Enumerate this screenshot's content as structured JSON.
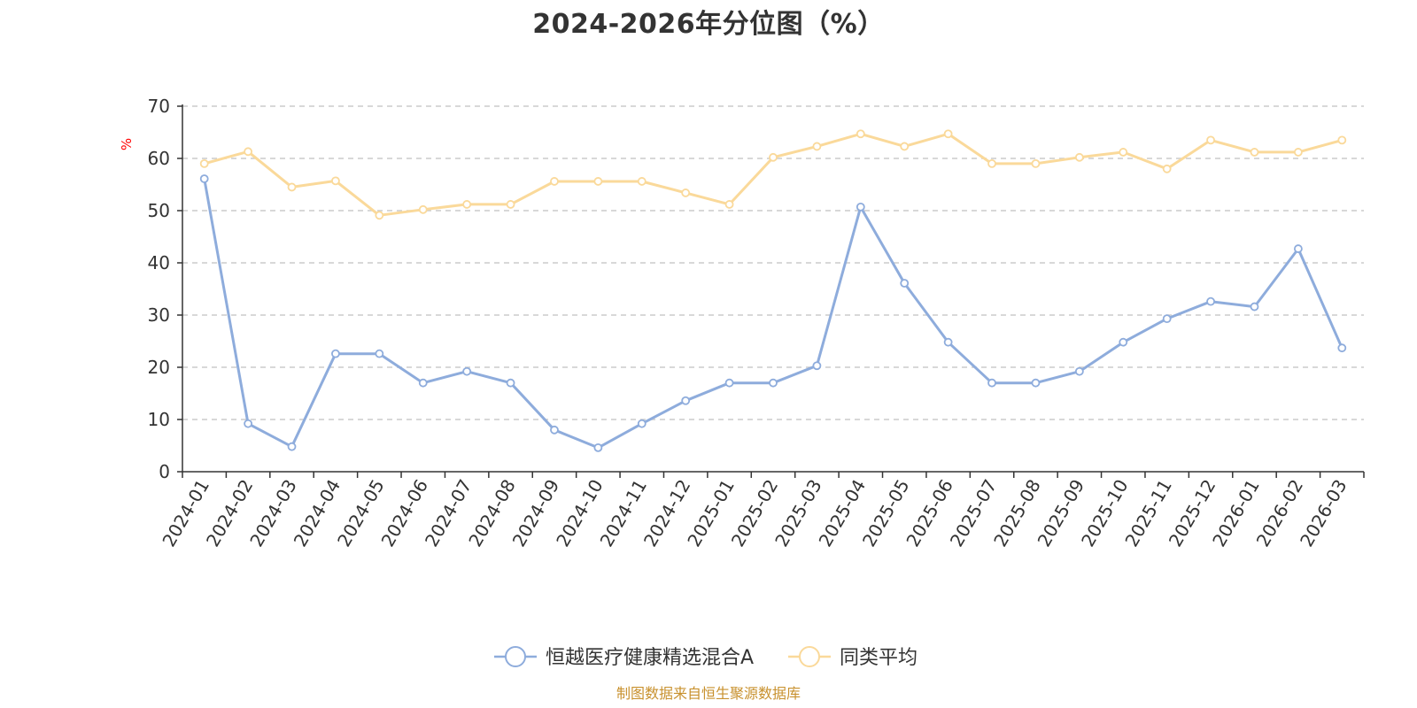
{
  "source_note": "制图数据来自恒生聚源数据库",
  "colors": {
    "series_fund": "#8eacdc",
    "series_avg": "#fad99a",
    "source_note": "#c8912e",
    "unit_label": "#ff0000",
    "grid": "#cccccc",
    "axis": "#333333"
  },
  "chart_data": {
    "type": "line",
    "title": "2024-2026年分位图（%）",
    "ylabel": "%",
    "xlabel": "",
    "ylim": [
      0,
      70
    ],
    "y_ticks": [
      0,
      10,
      20,
      30,
      40,
      50,
      60,
      70
    ],
    "grid": true,
    "legend_position": "bottom-center",
    "categories": [
      "2024-01",
      "2024-02",
      "2024-03",
      "2024-04",
      "2024-05",
      "2024-06",
      "2024-07",
      "2024-08",
      "2024-09",
      "2024-10",
      "2024-11",
      "2024-12",
      "2025-01",
      "2025-02",
      "2025-03",
      "2025-04",
      "2025-05",
      "2025-06",
      "2025-07",
      "2025-08",
      "2025-09",
      "2025-10",
      "2025-11",
      "2025-12",
      "2026-01",
      "2026-02",
      "2026-03"
    ],
    "series": [
      {
        "name": "恒越医疗健康精选混合A",
        "color": "#8eacdc",
        "values": [
          56.1,
          9.2,
          4.8,
          22.6,
          22.6,
          17.0,
          19.2,
          17.0,
          8.0,
          4.6,
          9.2,
          13.6,
          17.0,
          17.0,
          20.3,
          50.7,
          36.1,
          24.8,
          17.0,
          17.0,
          19.2,
          24.8,
          29.3,
          32.6,
          31.6,
          42.7,
          23.7
        ]
      },
      {
        "name": "同类平均",
        "color": "#fad99a",
        "values": [
          59.0,
          61.3,
          54.5,
          55.7,
          49.1,
          50.2,
          51.2,
          51.2,
          55.6,
          55.6,
          55.6,
          53.4,
          51.2,
          60.2,
          62.3,
          64.7,
          62.3,
          64.7,
          59.0,
          59.0,
          60.2,
          61.2,
          58.0,
          63.5,
          61.2,
          61.2,
          63.5
        ]
      }
    ]
  }
}
